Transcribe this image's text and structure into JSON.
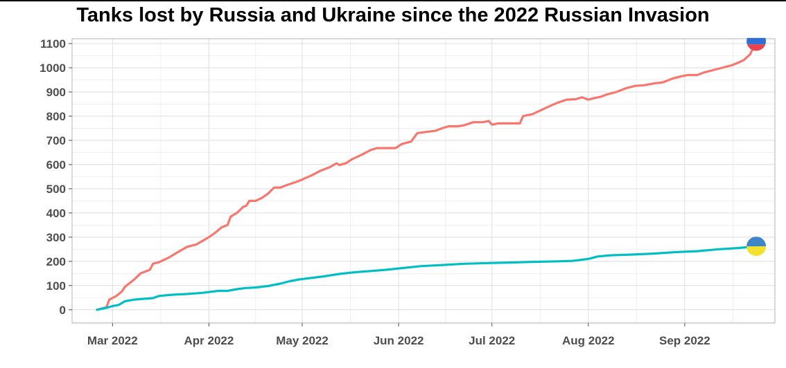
{
  "chart_data": {
    "type": "line",
    "title": "Tanks lost by Russia and Ukraine since the 2022 Russian Invasion",
    "xlabel": "",
    "ylabel": "",
    "x_ticks": [
      {
        "date": "2022-03-01",
        "label": "Mar 2022"
      },
      {
        "date": "2022-04-01",
        "label": "Apr 2022"
      },
      {
        "date": "2022-05-01",
        "label": "May 2022"
      },
      {
        "date": "2022-06-01",
        "label": "Jun 2022"
      },
      {
        "date": "2022-07-01",
        "label": "Jul 2022"
      },
      {
        "date": "2022-08-01",
        "label": "Aug 2022"
      },
      {
        "date": "2022-09-01",
        "label": "Sep 2022"
      }
    ],
    "y_ticks": [
      0,
      100,
      200,
      300,
      400,
      500,
      600,
      700,
      800,
      900,
      1000,
      1100
    ],
    "xlim": [
      "2022-02-16",
      "2022-09-30"
    ],
    "ylim": [
      -55,
      1120
    ],
    "grid": true,
    "legend": "none",
    "series": [
      {
        "color": "#f8766d",
        "marker": "russia-flag",
        "points": [
          [
            "2022-02-24",
            0
          ],
          [
            "2022-02-27",
            10
          ],
          [
            "2022-02-28",
            42
          ],
          [
            "2022-03-02",
            55
          ],
          [
            "2022-03-04",
            75
          ],
          [
            "2022-03-05",
            95
          ],
          [
            "2022-03-08",
            125
          ],
          [
            "2022-03-10",
            150
          ],
          [
            "2022-03-13",
            165
          ],
          [
            "2022-03-14",
            190
          ],
          [
            "2022-03-16",
            197
          ],
          [
            "2022-03-19",
            215
          ],
          [
            "2022-03-22",
            238
          ],
          [
            "2022-03-25",
            260
          ],
          [
            "2022-03-28",
            270
          ],
          [
            "2022-03-30",
            285
          ],
          [
            "2022-04-01",
            300
          ],
          [
            "2022-04-03",
            318
          ],
          [
            "2022-04-05",
            340
          ],
          [
            "2022-04-07",
            350
          ],
          [
            "2022-04-08",
            385
          ],
          [
            "2022-04-10",
            400
          ],
          [
            "2022-04-12",
            425
          ],
          [
            "2022-04-13",
            430
          ],
          [
            "2022-04-14",
            450
          ],
          [
            "2022-04-16",
            450
          ],
          [
            "2022-04-18",
            462
          ],
          [
            "2022-04-20",
            480
          ],
          [
            "2022-04-22",
            505
          ],
          [
            "2022-04-24",
            505
          ],
          [
            "2022-04-26",
            515
          ],
          [
            "2022-04-29",
            528
          ],
          [
            "2022-05-01",
            538
          ],
          [
            "2022-05-04",
            555
          ],
          [
            "2022-05-07",
            575
          ],
          [
            "2022-05-10",
            590
          ],
          [
            "2022-05-12",
            605
          ],
          [
            "2022-05-13",
            598
          ],
          [
            "2022-05-15",
            605
          ],
          [
            "2022-05-17",
            622
          ],
          [
            "2022-05-20",
            640
          ],
          [
            "2022-05-23",
            660
          ],
          [
            "2022-05-25",
            668
          ],
          [
            "2022-05-29",
            668
          ],
          [
            "2022-05-31",
            668
          ],
          [
            "2022-06-02",
            685
          ],
          [
            "2022-06-05",
            695
          ],
          [
            "2022-06-07",
            730
          ],
          [
            "2022-06-10",
            735
          ],
          [
            "2022-06-13",
            740
          ],
          [
            "2022-06-15",
            750
          ],
          [
            "2022-06-17",
            758
          ],
          [
            "2022-06-20",
            758
          ],
          [
            "2022-06-22",
            762
          ],
          [
            "2022-06-25",
            775
          ],
          [
            "2022-06-28",
            775
          ],
          [
            "2022-06-30",
            780
          ],
          [
            "2022-07-01",
            765
          ],
          [
            "2022-07-03",
            770
          ],
          [
            "2022-07-06",
            770
          ],
          [
            "2022-07-08",
            770
          ],
          [
            "2022-07-10",
            770
          ],
          [
            "2022-07-11",
            800
          ],
          [
            "2022-07-14",
            808
          ],
          [
            "2022-07-16",
            820
          ],
          [
            "2022-07-19",
            838
          ],
          [
            "2022-07-22",
            855
          ],
          [
            "2022-07-25",
            868
          ],
          [
            "2022-07-28",
            870
          ],
          [
            "2022-07-30",
            878
          ],
          [
            "2022-08-01",
            868
          ],
          [
            "2022-08-03",
            875
          ],
          [
            "2022-08-05",
            880
          ],
          [
            "2022-08-07",
            890
          ],
          [
            "2022-08-10",
            900
          ],
          [
            "2022-08-13",
            915
          ],
          [
            "2022-08-16",
            925
          ],
          [
            "2022-08-19",
            928
          ],
          [
            "2022-08-22",
            935
          ],
          [
            "2022-08-25",
            940
          ],
          [
            "2022-08-28",
            955
          ],
          [
            "2022-08-31",
            965
          ],
          [
            "2022-09-02",
            970
          ],
          [
            "2022-09-05",
            970
          ],
          [
            "2022-09-07",
            980
          ],
          [
            "2022-09-10",
            990
          ],
          [
            "2022-09-13",
            1000
          ],
          [
            "2022-09-16",
            1010
          ],
          [
            "2022-09-18",
            1020
          ],
          [
            "2022-09-20",
            1032
          ],
          [
            "2022-09-22",
            1055
          ],
          [
            "2022-09-24",
            1110
          ]
        ]
      },
      {
        "color": "#00bfc4",
        "marker": "ukraine-flag",
        "points": [
          [
            "2022-02-24",
            0
          ],
          [
            "2022-02-27",
            8
          ],
          [
            "2022-03-01",
            15
          ],
          [
            "2022-03-03",
            20
          ],
          [
            "2022-03-05",
            35
          ],
          [
            "2022-03-08",
            42
          ],
          [
            "2022-03-11",
            45
          ],
          [
            "2022-03-14",
            48
          ],
          [
            "2022-03-16",
            57
          ],
          [
            "2022-03-20",
            62
          ],
          [
            "2022-03-25",
            65
          ],
          [
            "2022-03-30",
            70
          ],
          [
            "2022-04-04",
            78
          ],
          [
            "2022-04-07",
            78
          ],
          [
            "2022-04-10",
            85
          ],
          [
            "2022-04-13",
            90
          ],
          [
            "2022-04-16",
            92
          ],
          [
            "2022-04-20",
            98
          ],
          [
            "2022-04-24",
            108
          ],
          [
            "2022-04-27",
            118
          ],
          [
            "2022-04-30",
            125
          ],
          [
            "2022-05-03",
            130
          ],
          [
            "2022-05-08",
            138
          ],
          [
            "2022-05-13",
            148
          ],
          [
            "2022-05-18",
            155
          ],
          [
            "2022-05-23",
            160
          ],
          [
            "2022-05-28",
            165
          ],
          [
            "2022-06-02",
            172
          ],
          [
            "2022-06-08",
            180
          ],
          [
            "2022-06-15",
            185
          ],
          [
            "2022-06-22",
            190
          ],
          [
            "2022-06-30",
            193
          ],
          [
            "2022-07-06",
            195
          ],
          [
            "2022-07-15",
            198
          ],
          [
            "2022-07-22",
            200
          ],
          [
            "2022-07-27",
            202
          ],
          [
            "2022-08-01",
            210
          ],
          [
            "2022-08-04",
            220
          ],
          [
            "2022-08-08",
            225
          ],
          [
            "2022-08-15",
            228
          ],
          [
            "2022-08-22",
            232
          ],
          [
            "2022-08-29",
            238
          ],
          [
            "2022-09-05",
            242
          ],
          [
            "2022-09-12",
            250
          ],
          [
            "2022-09-18",
            255
          ],
          [
            "2022-09-24",
            262
          ]
        ]
      }
    ]
  },
  "markers": {
    "russia_colors": [
      "#ffffff",
      "#2f6fd6",
      "#e8434c"
    ],
    "ukraine_colors": [
      "#3f86c6",
      "#f2e22f"
    ]
  }
}
